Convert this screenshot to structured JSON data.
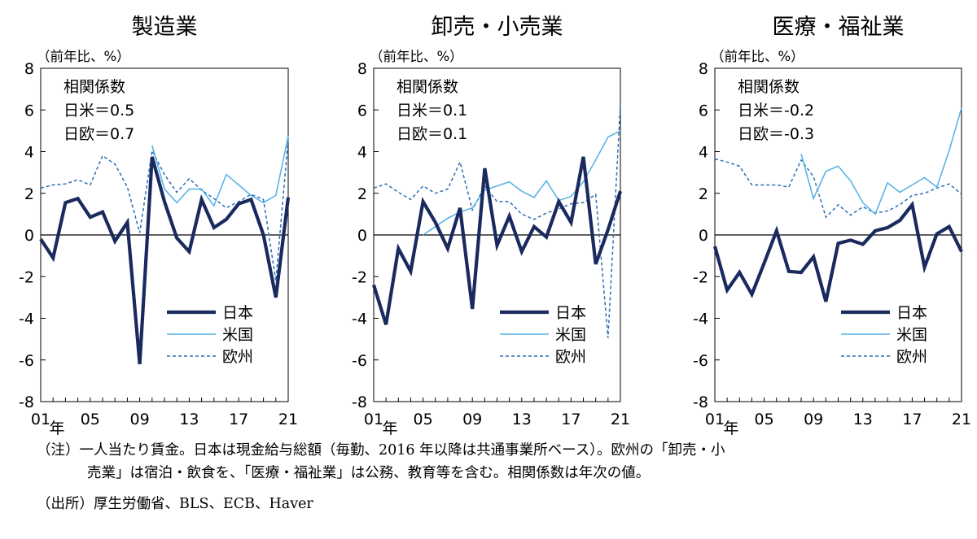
{
  "chart_data": [
    {
      "type": "line",
      "title": "製造業",
      "unit_label": "（前年比、%）",
      "x": [
        2001,
        2002,
        2003,
        2004,
        2005,
        2006,
        2007,
        2008,
        2009,
        2010,
        2011,
        2012,
        2013,
        2014,
        2015,
        2016,
        2017,
        2018,
        2019,
        2020,
        2021
      ],
      "x_tick_labels": [
        "01",
        "05",
        "09",
        "13",
        "17",
        "21"
      ],
      "x_year_label": "年",
      "ylim": [
        -8,
        8
      ],
      "y_ticks": [
        -8,
        -6,
        -4,
        -2,
        0,
        2,
        4,
        6,
        8
      ],
      "corr": {
        "heading": "相関係数",
        "lines": [
          "日米＝0.5",
          "日欧＝0.7"
        ]
      },
      "series": [
        {
          "name": "日本",
          "values": [
            -0.2,
            -1.1,
            1.55,
            1.75,
            0.85,
            1.1,
            -0.3,
            0.6,
            -6.2,
            3.75,
            1.6,
            -0.15,
            -0.8,
            1.7,
            0.35,
            0.75,
            1.5,
            1.7,
            0.0,
            -3.0,
            1.8
          ]
        },
        {
          "name": "米国",
          "values": [
            null,
            null,
            null,
            null,
            null,
            null,
            null,
            null,
            null,
            4.3,
            2.2,
            1.55,
            2.2,
            2.2,
            1.4,
            2.9,
            2.4,
            1.9,
            1.55,
            1.9,
            4.75
          ]
        },
        {
          "name": "欧州",
          "values": [
            2.25,
            2.4,
            2.45,
            2.65,
            2.4,
            3.8,
            3.4,
            2.3,
            0.1,
            4.05,
            2.9,
            2.05,
            2.7,
            2.15,
            1.75,
            1.3,
            1.6,
            1.95,
            1.7,
            -2.2,
            4.6
          ]
        }
      ]
    },
    {
      "type": "line",
      "title": "卸売・小売業",
      "unit_label": "（前年比、%）",
      "x": [
        2001,
        2002,
        2003,
        2004,
        2005,
        2006,
        2007,
        2008,
        2009,
        2010,
        2011,
        2012,
        2013,
        2014,
        2015,
        2016,
        2017,
        2018,
        2019,
        2020,
        2021
      ],
      "x_tick_labels": [
        "01",
        "05",
        "09",
        "13",
        "17",
        "21"
      ],
      "x_year_label": "年",
      "ylim": [
        -8,
        8
      ],
      "y_ticks": [
        -8,
        -6,
        -4,
        -2,
        0,
        2,
        4,
        6,
        8
      ],
      "corr": {
        "heading": "相関係数",
        "lines": [
          "日米＝0.1",
          "日欧＝0.1"
        ]
      },
      "series": [
        {
          "name": "日本",
          "values": [
            -2.4,
            -4.3,
            -0.65,
            -1.75,
            1.6,
            0.6,
            -0.65,
            1.3,
            -3.55,
            3.2,
            -0.5,
            0.9,
            -0.8,
            0.4,
            -0.1,
            1.6,
            0.6,
            3.75,
            -1.4,
            0.25,
            2.1
          ]
        },
        {
          "name": "米国",
          "values": [
            null,
            null,
            null,
            null,
            0.0,
            0.4,
            0.8,
            1.1,
            1.3,
            2.15,
            2.35,
            2.55,
            2.1,
            1.8,
            2.6,
            1.65,
            1.85,
            2.55,
            3.6,
            4.7,
            5.0
          ]
        },
        {
          "name": "欧州",
          "values": [
            2.25,
            2.45,
            2.05,
            1.7,
            2.35,
            2.0,
            2.2,
            3.5,
            1.2,
            2.35,
            1.6,
            1.6,
            1.0,
            0.75,
            1.05,
            1.25,
            1.5,
            1.55,
            1.95,
            -4.95,
            6.3
          ]
        }
      ]
    },
    {
      "type": "line",
      "title": "医療・福祉業",
      "unit_label": "（前年比、%）",
      "x": [
        2001,
        2002,
        2003,
        2004,
        2005,
        2006,
        2007,
        2008,
        2009,
        2010,
        2011,
        2012,
        2013,
        2014,
        2015,
        2016,
        2017,
        2018,
        2019,
        2020,
        2021
      ],
      "x_tick_labels": [
        "01",
        "05",
        "09",
        "13",
        "17",
        "21"
      ],
      "x_year_label": "年",
      "ylim": [
        -8,
        8
      ],
      "y_ticks": [
        -8,
        -6,
        -4,
        -2,
        0,
        2,
        4,
        6,
        8
      ],
      "corr": {
        "heading": "相関係数",
        "lines": [
          "日米＝-0.2",
          "日欧＝-0.3"
        ]
      },
      "series": [
        {
          "name": "日本",
          "values": [
            -0.55,
            -2.65,
            -1.8,
            -2.85,
            -1.35,
            0.2,
            -1.75,
            -1.8,
            -1.05,
            -3.2,
            -0.4,
            -0.25,
            -0.45,
            0.2,
            0.35,
            0.7,
            1.45,
            -1.55,
            0.05,
            0.4,
            -0.8
          ]
        },
        {
          "name": "米国",
          "values": [
            null,
            null,
            null,
            null,
            null,
            null,
            null,
            3.9,
            1.75,
            3.05,
            3.3,
            2.6,
            1.55,
            1.0,
            2.5,
            2.05,
            2.4,
            2.75,
            2.3,
            4.05,
            6.1
          ]
        },
        {
          "name": "欧州",
          "values": [
            3.65,
            3.5,
            3.3,
            2.4,
            2.4,
            2.4,
            2.3,
            3.6,
            2.8,
            0.85,
            1.45,
            0.95,
            1.35,
            1.05,
            1.15,
            1.45,
            1.9,
            2.0,
            2.25,
            2.45,
            1.95
          ]
        }
      ]
    }
  ],
  "notes": {
    "line1": "（注）一人当たり賃金。日本は現金給与総額（毎勤、2016 年以降は共通事業所ベース）。欧州の「卸売・小",
    "line2": "売業」は宿泊・飲食を、「医療・福祉業」は公務、教育等を含む。相関係数は年次の値。",
    "source": "（出所）厚生労働省、BLS、ECB、Haver"
  },
  "colors": {
    "japan": "#1a2a5e",
    "us": "#5ab4e6",
    "eu": "#2e6fb5",
    "axis": "#000000"
  }
}
